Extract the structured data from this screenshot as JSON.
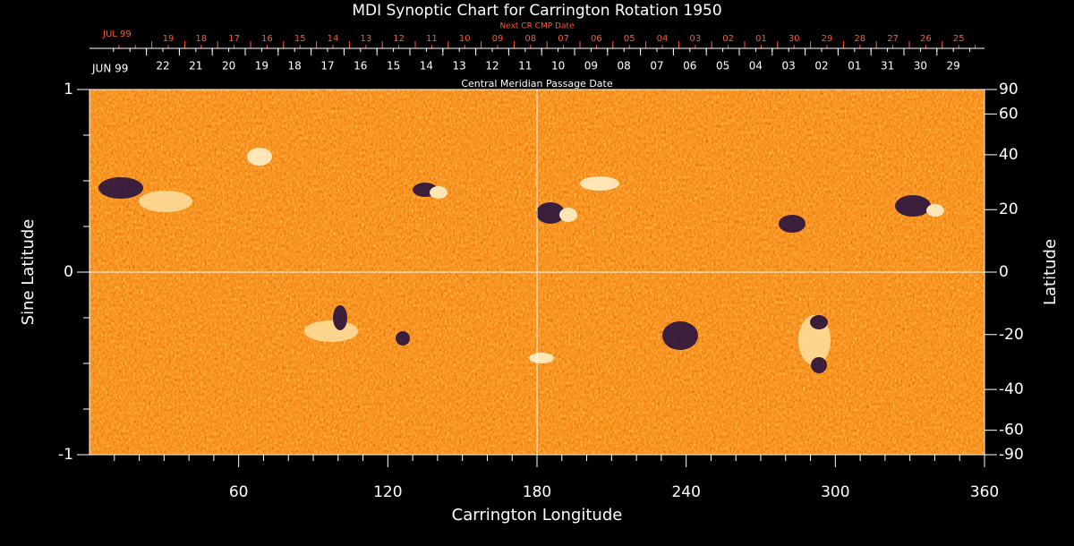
{
  "chart_data": {
    "type": "synoptic-map",
    "title": "MDI Synoptic Chart for Carrington Rotation 1950",
    "xlabel": "Carrington Longitude",
    "ylabel": "Sine Latitude",
    "y2label": "Latitude",
    "xlim": [
      0,
      360
    ],
    "xticks": [
      60,
      120,
      180,
      240,
      300,
      360
    ],
    "ylim": [
      -1,
      1
    ],
    "yticks": [
      -1,
      0,
      1
    ],
    "y2scale": "sine",
    "y2ticks": [
      90,
      60,
      40,
      20,
      0,
      -20,
      -40,
      -60,
      -90
    ],
    "next_cr_axis": {
      "title": "Next CR CMP Date",
      "month_label": "JUL 99",
      "color": "#ff5a28",
      "dates": [
        "19",
        "18",
        "17",
        "16",
        "15",
        "14",
        "13",
        "12",
        "11",
        "10",
        "09",
        "08",
        "07",
        "06",
        "05",
        "04",
        "03",
        "02",
        "01",
        "30",
        "29",
        "28",
        "27",
        "26",
        "25"
      ]
    },
    "cmp_axis": {
      "title": "Central Meridian Passage Date",
      "month_label": "JUN 99",
      "color": "#ffffff",
      "dates": [
        "22",
        "21",
        "20",
        "19",
        "18",
        "17",
        "16",
        "15",
        "14",
        "13",
        "12",
        "11",
        "10",
        "09",
        "08",
        "07",
        "06",
        "05",
        "04",
        "03",
        "02",
        "01",
        "31",
        "30",
        "29"
      ]
    }
  }
}
